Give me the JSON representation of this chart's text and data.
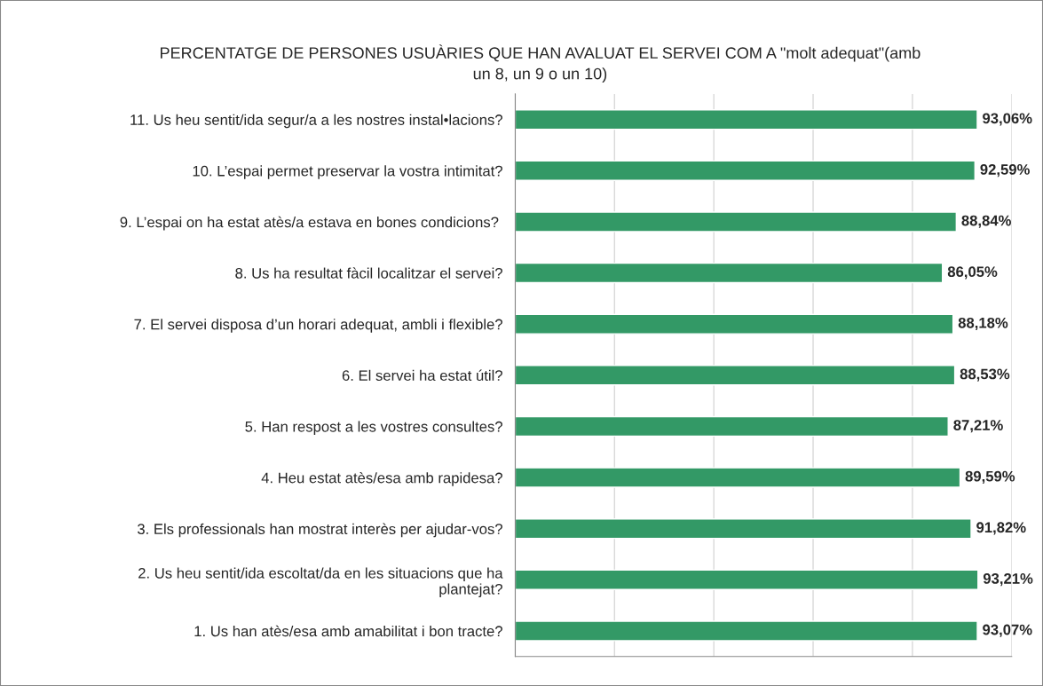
{
  "chart_data": {
    "type": "bar",
    "orientation": "horizontal",
    "title": "PERCENTATGE DE PERSONES USUÀRIES QUE HAN AVALUAT EL SERVEI COM A \"molt adequat\"(amb\nun 8, un 9 o un 10)",
    "categories": [
      "11. Us heu sentit/ida segur/a a les nostres instal•lacions?",
      "10. L’espai permet preservar la vostra intimitat?",
      "9. L’espai on ha estat atès/a estava en bones condicions? ",
      "8. Us ha resultat fàcil localitzar el servei?",
      "7. El servei disposa d’un horari adequat, ambli i flexible?",
      "6. El servei ha estat útil?",
      "5. Han respost a les vostres consultes?",
      "4. Heu estat atès/esa amb rapidesa?",
      "3. Els professionals han mostrat interès per ajudar-vos?",
      "2. Us heu sentit/ida escoltat/da en les situacions que ha\nplantejat?",
      "1. Us han atès/esa amb amabilitat i bon tracte?"
    ],
    "values": [
      93.06,
      92.59,
      88.84,
      86.05,
      88.18,
      88.53,
      87.21,
      89.59,
      91.82,
      93.21,
      93.07
    ],
    "value_labels": [
      "93,06%",
      "92,59%",
      "88,84%",
      "86,05%",
      "88,18%",
      "88,53%",
      "87,21%",
      "89,59%",
      "91,82%",
      "93,21%",
      "93,07%"
    ],
    "color": "#339966",
    "xlim": [
      0,
      100
    ],
    "xticks": [
      {
        "value": 0,
        "label": null
      },
      {
        "value": 20,
        "label": null
      },
      {
        "value": 40,
        "label": null
      },
      {
        "value": 60,
        "label": null
      },
      {
        "value": 80,
        "label": null
      },
      {
        "value": 100,
        "label": null
      }
    ],
    "grid": "x",
    "tick_labels": "y"
  }
}
